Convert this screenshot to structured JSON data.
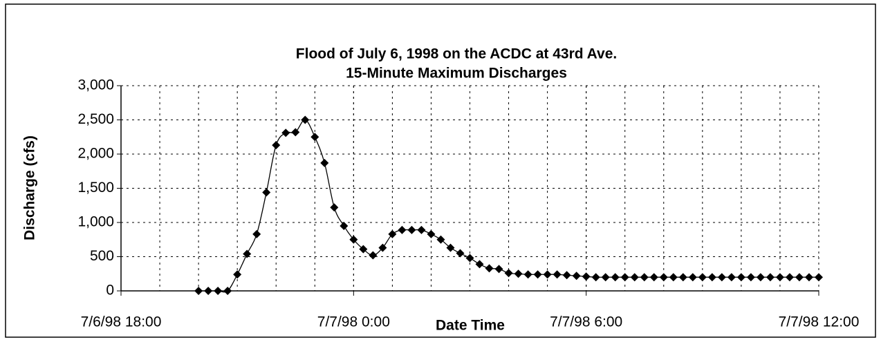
{
  "chart_data": {
    "type": "line",
    "title": "Flood of July 6, 1998 on the ACDC at 43rd Ave.",
    "subtitle": "15-Minute Maximum Discharges",
    "x_label": "Date Time",
    "y_label": "Discharge (cfs)",
    "x": [
      "1998-07-06T20:00",
      "1998-07-06T20:15",
      "1998-07-06T20:30",
      "1998-07-06T20:45",
      "1998-07-06T21:00",
      "1998-07-06T21:15",
      "1998-07-06T21:30",
      "1998-07-06T21:45",
      "1998-07-06T22:00",
      "1998-07-06T22:15",
      "1998-07-06T22:30",
      "1998-07-06T22:45",
      "1998-07-06T23:00",
      "1998-07-06T23:15",
      "1998-07-06T23:30",
      "1998-07-06T23:45",
      "1998-07-07T00:00",
      "1998-07-07T00:15",
      "1998-07-07T00:30",
      "1998-07-07T00:45",
      "1998-07-07T01:00",
      "1998-07-07T01:15",
      "1998-07-07T01:30",
      "1998-07-07T01:45",
      "1998-07-07T02:00",
      "1998-07-07T02:15",
      "1998-07-07T02:30",
      "1998-07-07T02:45",
      "1998-07-07T03:00",
      "1998-07-07T03:15",
      "1998-07-07T03:30",
      "1998-07-07T03:45",
      "1998-07-07T04:00",
      "1998-07-07T04:15",
      "1998-07-07T04:30",
      "1998-07-07T04:45",
      "1998-07-07T05:00",
      "1998-07-07T05:15",
      "1998-07-07T05:30",
      "1998-07-07T05:45",
      "1998-07-07T06:00",
      "1998-07-07T06:15",
      "1998-07-07T06:30",
      "1998-07-07T06:45",
      "1998-07-07T07:00",
      "1998-07-07T07:15",
      "1998-07-07T07:30",
      "1998-07-07T07:45",
      "1998-07-07T08:00",
      "1998-07-07T08:15",
      "1998-07-07T08:30",
      "1998-07-07T08:45",
      "1998-07-07T09:00",
      "1998-07-07T09:15",
      "1998-07-07T09:30",
      "1998-07-07T09:45",
      "1998-07-07T10:00",
      "1998-07-07T10:15",
      "1998-07-07T10:30",
      "1998-07-07T10:45",
      "1998-07-07T11:00",
      "1998-07-07T11:15",
      "1998-07-07T11:30",
      "1998-07-07T11:45",
      "1998-07-07T12:00"
    ],
    "series": [
      {
        "name": "Discharge",
        "color": "#000000",
        "values": [
          0,
          0,
          0,
          0,
          240,
          540,
          830,
          1440,
          2130,
          2310,
          2320,
          2500,
          2250,
          1870,
          1220,
          950,
          750,
          610,
          520,
          630,
          830,
          890,
          890,
          890,
          830,
          750,
          630,
          550,
          480,
          390,
          330,
          320,
          260,
          250,
          240,
          240,
          240,
          240,
          230,
          220,
          210,
          200,
          200,
          200,
          200,
          200,
          200,
          200,
          200,
          200,
          200,
          200,
          200,
          200,
          200,
          200,
          200,
          200,
          200,
          200,
          200,
          200,
          200,
          200,
          200
        ]
      }
    ],
    "xlim": [
      "1998-07-06T18:00",
      "1998-07-07T12:00"
    ],
    "xticks": [
      {
        "value": "1998-07-06T18:00",
        "label": "7/6/98 18:00"
      },
      {
        "value": "1998-07-07T00:00",
        "label": "7/7/98 0:00"
      },
      {
        "value": "1998-07-07T06:00",
        "label": "7/7/98 6:00"
      },
      {
        "value": "1998-07-07T12:00",
        "label": "7/7/98 12:00"
      }
    ],
    "ylim": [
      0,
      3000
    ],
    "yticks": [
      0,
      {
        "value": 500,
        "label": "500"
      },
      {
        "value": 1000,
        "label": "1,000"
      },
      {
        "value": 1500,
        "label": "1,500"
      },
      {
        "value": 2000,
        "label": "2,000"
      },
      {
        "value": 2500,
        "label": "2,500"
      },
      {
        "value": 3000,
        "label": "3,000"
      }
    ],
    "grid": true
  }
}
